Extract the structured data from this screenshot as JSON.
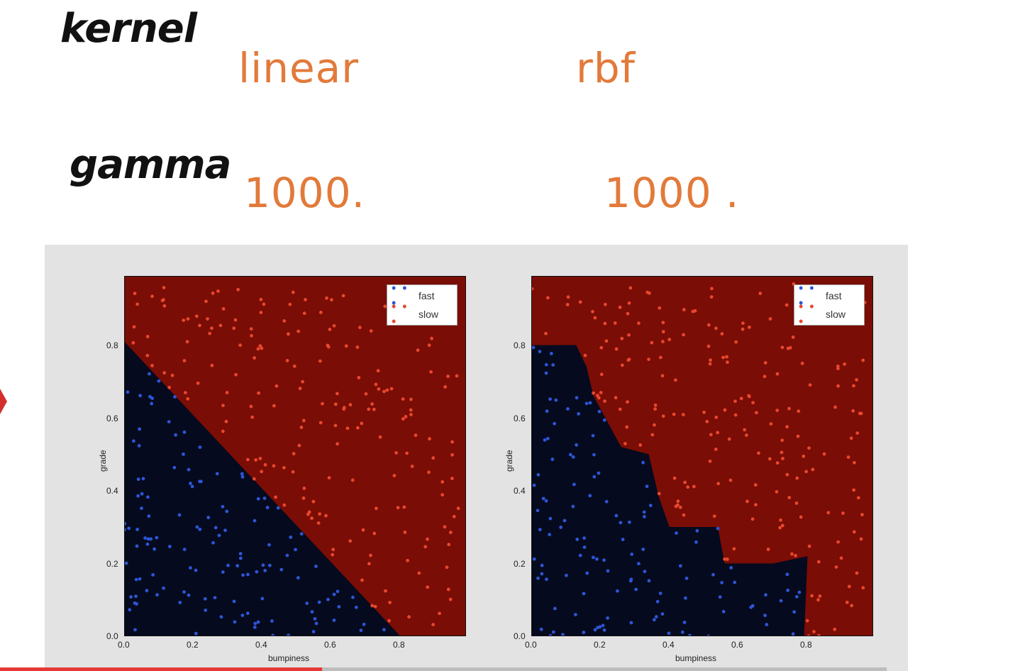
{
  "labels": {
    "kernel": "kernel",
    "gamma": "gamma"
  },
  "columns": [
    {
      "kernel": "linear",
      "gamma": "1000."
    },
    {
      "kernel": "rbf",
      "gamma": "1000 ."
    }
  ],
  "colors": {
    "handwriting_label": "#111111",
    "handwriting_value": "#e27a3a",
    "region_slow": "#7a0d05",
    "region_fast": "#050a1e",
    "point_slow": "#e8472e",
    "point_fast": "#2e55d6",
    "progress": "#e53935"
  },
  "video": {
    "progress_fraction": 0.363
  },
  "chart_data": [
    {
      "type": "scatter",
      "title": "",
      "xlabel": "bumpiness",
      "ylabel": "grade",
      "xticks": [
        "0.0",
        "0.2",
        "0.4",
        "0.6",
        "0.8"
      ],
      "yticks": [
        "0.0",
        "0.2",
        "0.4",
        "0.6",
        "0.8"
      ],
      "xlim": [
        0,
        0.99
      ],
      "ylim": [
        0,
        0.99
      ],
      "legend": {
        "position": "top-right",
        "entries": [
          "fast",
          "slow"
        ]
      },
      "series": [
        {
          "name": "fast"
        },
        {
          "name": "slow"
        }
      ],
      "boundary": [
        [
          0,
          0.81
        ],
        [
          0.8,
          0
        ]
      ]
    },
    {
      "type": "scatter",
      "title": "",
      "xlabel": "bumpiness",
      "ylabel": "grade",
      "xticks": [
        "0.0",
        "0.2",
        "0.4",
        "0.6",
        "0.8"
      ],
      "yticks": [
        "0.0",
        "0.2",
        "0.4",
        "0.6",
        "0.8"
      ],
      "xlim": [
        0,
        0.99
      ],
      "ylim": [
        0,
        0.99
      ],
      "legend": {
        "position": "top-right",
        "entries": [
          "fast",
          "slow"
        ]
      },
      "series": [
        {
          "name": "fast"
        },
        {
          "name": "slow"
        }
      ],
      "boundary": [
        [
          0,
          0.8
        ],
        [
          0.13,
          0.8
        ],
        [
          0.16,
          0.74
        ],
        [
          0.18,
          0.66
        ],
        [
          0.26,
          0.52
        ],
        [
          0.34,
          0.5
        ],
        [
          0.37,
          0.38
        ],
        [
          0.4,
          0.3
        ],
        [
          0.54,
          0.3
        ],
        [
          0.56,
          0.2
        ],
        [
          0.7,
          0.2
        ],
        [
          0.8,
          0.22
        ],
        [
          0.79,
          0
        ]
      ]
    }
  ]
}
